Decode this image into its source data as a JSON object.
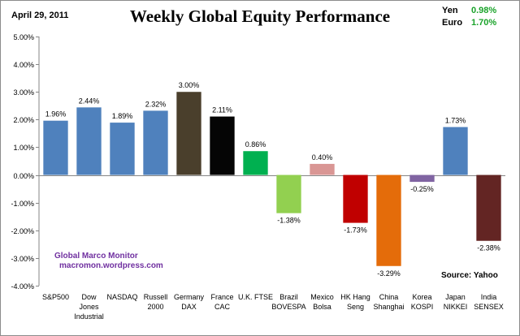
{
  "header": {
    "date": "April 29, 2011",
    "title": "Weekly Global Equity Performance"
  },
  "currencies": [
    {
      "name": "Yen",
      "value": "0.98%"
    },
    {
      "name": "Euro",
      "value": "1.70%"
    }
  ],
  "watermark": {
    "line1": "Global Marco Monitor",
    "line2": "macromon.wordpress.com"
  },
  "source": "Source:  Yahoo",
  "chart_data": {
    "type": "bar",
    "title": "Weekly Global Equity Performance",
    "xlabel": "",
    "ylabel": "",
    "ylim": [
      -4,
      5
    ],
    "ytick_step": 1,
    "grid": false,
    "categories": [
      [
        "S&P500"
      ],
      [
        "Dow",
        "Jones",
        "Industrial"
      ],
      [
        "NASDAQ"
      ],
      [
        "Russell",
        "2000"
      ],
      [
        "Germany",
        "DAX"
      ],
      [
        "France",
        "CAC"
      ],
      [
        "U.K. FTSE"
      ],
      [
        "Brazil",
        "BOVESPA"
      ],
      [
        "Mexico",
        "Bolsa"
      ],
      [
        "HK Hang",
        "Seng"
      ],
      [
        "China",
        "Shanghai"
      ],
      [
        "Korea",
        "KOSPI"
      ],
      [
        "Japan",
        "NIKKEI"
      ],
      [
        "India",
        "SENSEX"
      ]
    ],
    "values": [
      1.96,
      2.44,
      1.89,
      2.32,
      3.0,
      2.11,
      0.86,
      -1.38,
      0.4,
      -1.73,
      -3.29,
      -0.25,
      1.73,
      -2.38
    ],
    "colors": [
      "#4f81bd",
      "#4f81bd",
      "#4f81bd",
      "#4f81bd",
      "#4a3f2c",
      "#050505",
      "#00b050",
      "#92d050",
      "#d99694",
      "#c00000",
      "#e46c0a",
      "#8064a2",
      "#4f81bd",
      "#632523"
    ]
  }
}
